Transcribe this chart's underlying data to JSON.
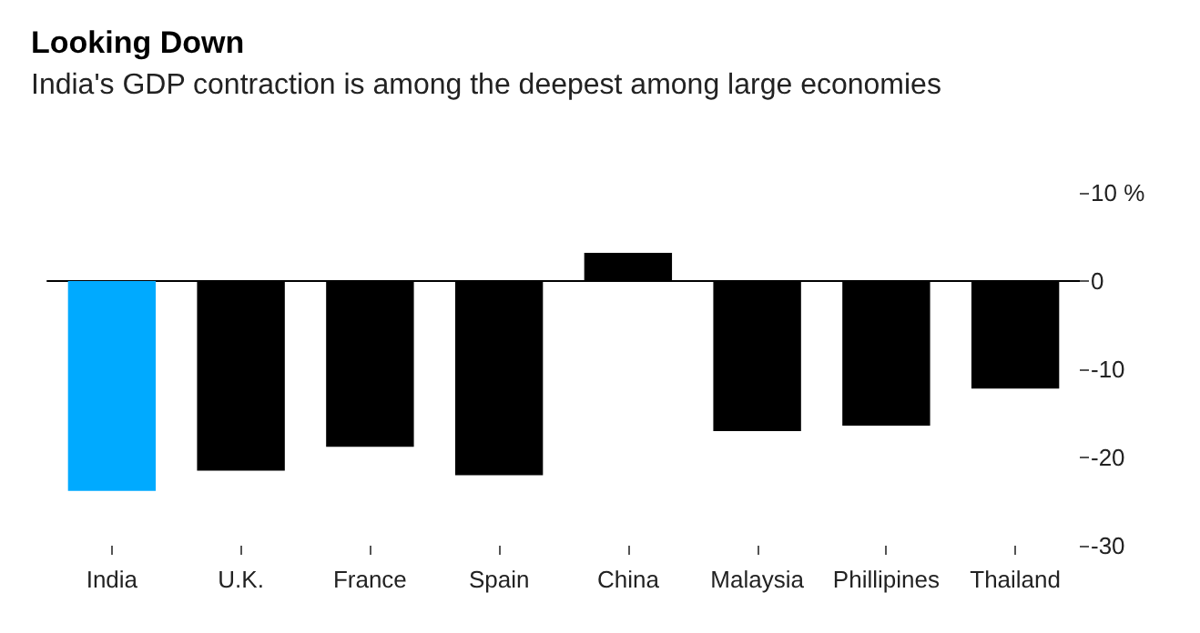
{
  "chart_data": {
    "type": "bar",
    "title": "Looking Down",
    "subtitle": "India's GDP contraction is among the deepest among large economies",
    "categories": [
      "India",
      "U.K.",
      "France",
      "Spain",
      "China",
      "Malaysia",
      "Phillipines",
      "Thailand"
    ],
    "values": [
      -23.8,
      -21.5,
      -18.8,
      -22.0,
      3.2,
      -17.0,
      -16.4,
      -12.2
    ],
    "colors": [
      "#00aaff",
      "#000000",
      "#000000",
      "#000000",
      "#000000",
      "#000000",
      "#000000",
      "#000000"
    ],
    "ylim": [
      -30,
      10
    ],
    "yticks": [
      {
        "value": 10,
        "label": "10 %"
      },
      0,
      -10,
      -20,
      -30
    ]
  }
}
